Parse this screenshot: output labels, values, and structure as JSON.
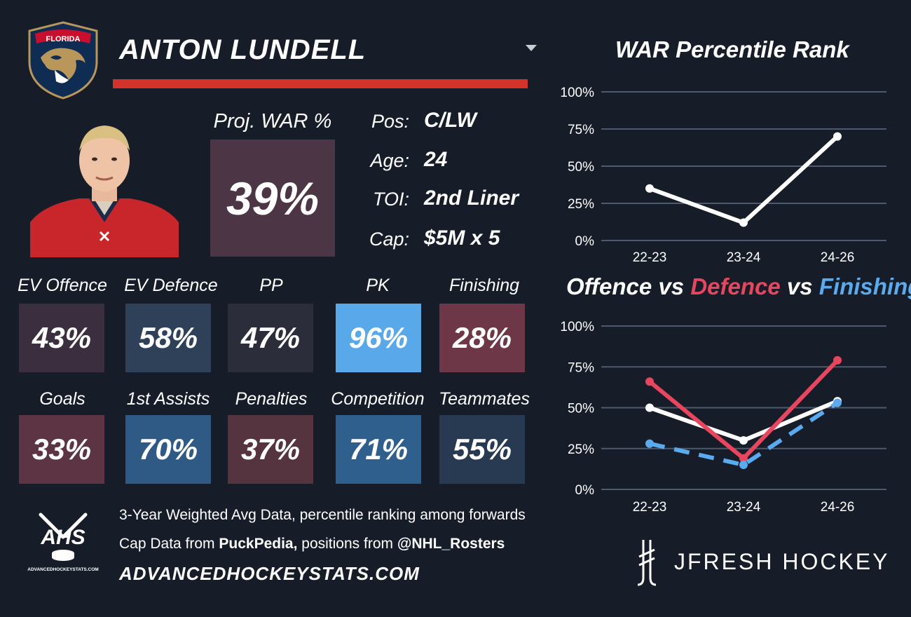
{
  "header": {
    "team_logo_text": "FLORIDA",
    "player_name": "ANTON LUNDELL"
  },
  "proj_war": {
    "label": "Proj. WAR %",
    "value": "39%",
    "color": "#4c3545"
  },
  "info": [
    {
      "key": "Pos:",
      "value": "C/LW"
    },
    {
      "key": "Age:",
      "value": "24"
    },
    {
      "key": "TOI:",
      "value": "2nd Liner"
    },
    {
      "key": "Cap:",
      "value": "$5M x 5"
    }
  ],
  "stats_row1": [
    {
      "label": "EV Offence",
      "value": "43%",
      "color": "#3b2e3e"
    },
    {
      "label": "EV Defence",
      "value": "58%",
      "color": "#2e4158"
    },
    {
      "label": "PP",
      "value": "47%",
      "color": "#2c2d3b"
    },
    {
      "label": "PK",
      "value": "96%",
      "color": "#59a8ea"
    },
    {
      "label": "Finishing",
      "value": "28%",
      "color": "#6e3748"
    }
  ],
  "stats_row2": [
    {
      "label": "Goals",
      "value": "33%",
      "color": "#5c3444"
    },
    {
      "label": "1st Assists",
      "value": "70%",
      "color": "#2f5a86"
    },
    {
      "label": "Penalties",
      "value": "37%",
      "color": "#55343f"
    },
    {
      "label": "Competition",
      "value": "71%",
      "color": "#2f5f8d"
    },
    {
      "label": "Teammates",
      "value": "55%",
      "color": "#273a52"
    }
  ],
  "footer": {
    "logo_text": "AHS",
    "logo_subtext": "ADVANCEDHOCKEYSTATS.COM",
    "line1": "3-Year Weighted Avg Data, percentile ranking among forwards",
    "line2_a": "Cap Data from ",
    "line2_b": "PuckPedia,",
    "line2_c": " positions from ",
    "line2_d": "@NHL_Rosters",
    "site": "ADVANCEDHOCKEYSTATS.COM",
    "brand": "JFRESH HOCKEY"
  },
  "chart_titles": {
    "war_title": "WAR Percentile Rank",
    "offence": "Offence",
    "vs1": " vs ",
    "defence": "Defence",
    "vs2": " vs ",
    "finishing": "Finishing"
  },
  "chart_data": [
    {
      "type": "line",
      "title": "WAR Percentile Rank",
      "categories": [
        "22-23",
        "23-24",
        "24-26"
      ],
      "yticks": [
        "0%",
        "25%",
        "50%",
        "75%",
        "100%"
      ],
      "ylim": [
        0,
        100
      ],
      "grid": true,
      "series": [
        {
          "values": [
            35,
            12,
            70
          ],
          "color": "#ffffff",
          "dashed": false
        }
      ]
    },
    {
      "type": "line",
      "title": "Offence vs Defence vs Finishing",
      "categories": [
        "22-23",
        "23-24",
        "24-26"
      ],
      "yticks": [
        "0%",
        "25%",
        "50%",
        "75%",
        "100%"
      ],
      "ylim": [
        0,
        100
      ],
      "grid": true,
      "series": [
        {
          "name": "Offence",
          "values": [
            50,
            30,
            54
          ],
          "color": "#ffffff",
          "dashed": false
        },
        {
          "name": "Defence",
          "values": [
            66,
            19,
            79
          ],
          "color": "#e8455e",
          "dashed": false
        },
        {
          "name": "Finishing",
          "values": [
            28,
            15,
            53
          ],
          "color": "#5aaaf0",
          "dashed": true
        }
      ]
    }
  ]
}
